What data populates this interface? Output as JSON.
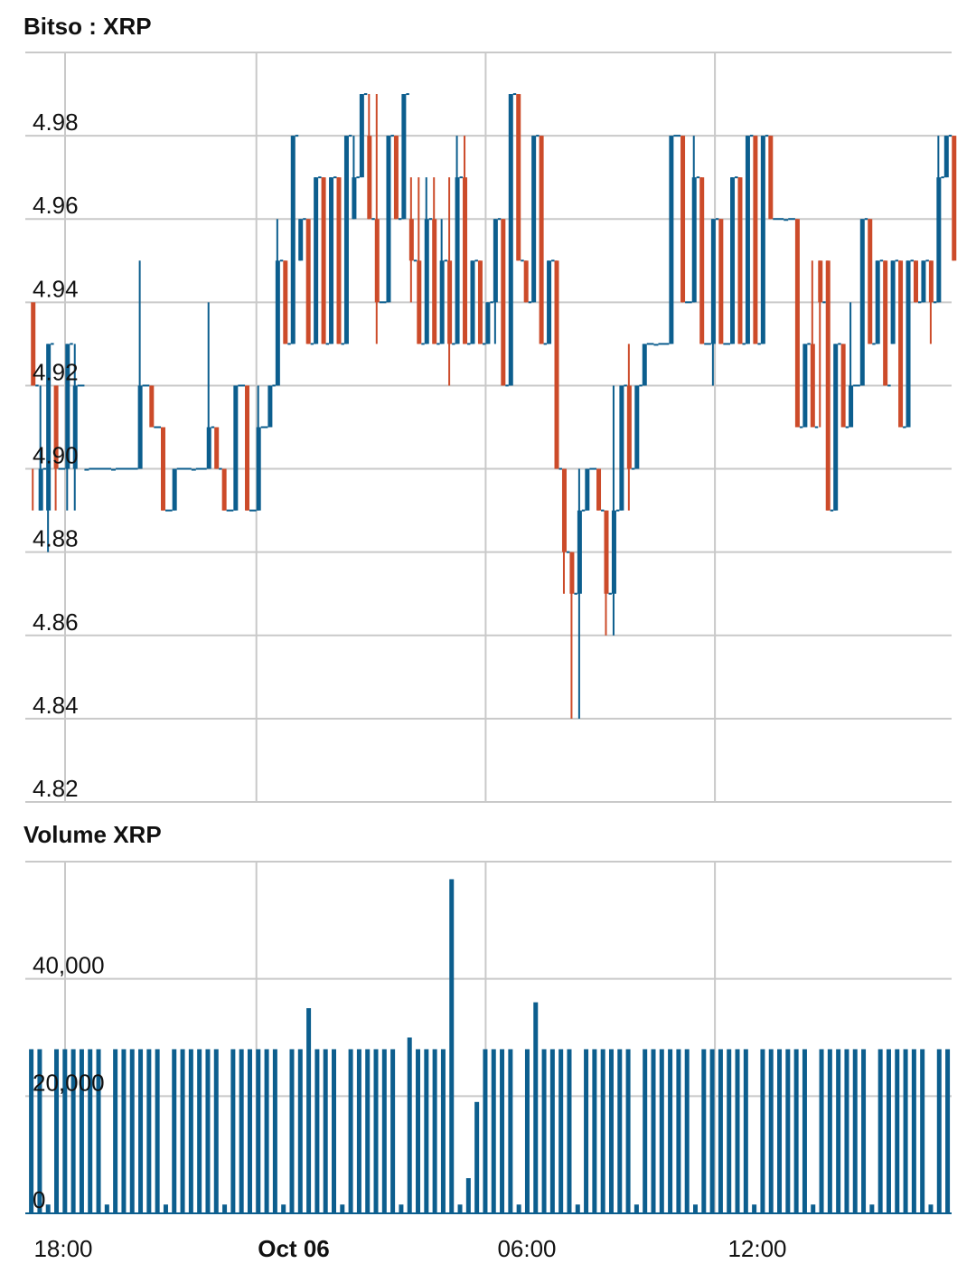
{
  "chart_data": [
    {
      "type": "line",
      "title": "Bitso : XRP",
      "style": "step-candles",
      "colors": {
        "up": "#0c5e8e",
        "down": "#cc4b2a"
      },
      "ylim": [
        4.82,
        5.0
      ],
      "yticks": [
        4.82,
        4.84,
        4.86,
        4.88,
        4.9,
        4.92,
        4.94,
        4.96,
        4.98
      ],
      "ytick_labels": [
        "4.82",
        "4.84",
        "4.86",
        "4.88",
        "4.90",
        "4.92",
        "4.94",
        "4.96",
        "4.98"
      ],
      "xlim": [
        0.0,
        24.17
      ],
      "xticks": [
        0,
        6,
        12,
        18
      ],
      "xtick_labels": [
        "18:00",
        "Oct 06",
        "06:00",
        "12:00"
      ],
      "grid": true,
      "candles": [
        [
          0.1,
          4.94,
          4.92,
          4.9,
          4.89
        ],
        [
          0.3,
          4.89,
          4.9,
          4.92,
          4.89
        ],
        [
          0.5,
          4.89,
          4.93,
          4.93,
          4.88
        ],
        [
          0.7,
          4.92,
          4.9,
          4.92,
          4.89
        ],
        [
          1.0,
          4.9,
          4.93,
          4.93,
          4.89
        ],
        [
          1.2,
          4.9,
          4.92,
          4.93,
          4.89
        ],
        [
          1.5,
          4.9,
          4.9,
          4.9,
          4.9
        ],
        [
          2.2,
          4.9,
          4.9,
          4.9,
          4.9
        ],
        [
          2.9,
          4.9,
          4.92,
          4.95,
          4.9
        ],
        [
          3.2,
          4.92,
          4.91,
          4.92,
          4.91
        ],
        [
          3.5,
          4.91,
          4.89,
          4.91,
          4.89
        ],
        [
          3.8,
          4.89,
          4.9,
          4.9,
          4.89
        ],
        [
          4.3,
          4.9,
          4.9,
          4.9,
          4.9
        ],
        [
          4.7,
          4.9,
          4.91,
          4.94,
          4.9
        ],
        [
          4.9,
          4.91,
          4.9,
          4.91,
          4.9
        ],
        [
          5.1,
          4.9,
          4.89,
          4.9,
          4.89
        ],
        [
          5.4,
          4.89,
          4.92,
          4.92,
          4.89
        ],
        [
          5.7,
          4.92,
          4.89,
          4.92,
          4.89
        ],
        [
          6.0,
          4.89,
          4.91,
          4.92,
          4.89
        ],
        [
          6.3,
          4.91,
          4.92,
          4.92,
          4.91
        ],
        [
          6.5,
          4.92,
          4.95,
          4.96,
          4.92
        ],
        [
          6.7,
          4.95,
          4.93,
          4.95,
          4.93
        ],
        [
          6.9,
          4.93,
          4.98,
          4.98,
          4.93
        ],
        [
          7.1,
          4.95,
          4.96,
          4.96,
          4.95
        ],
        [
          7.3,
          4.96,
          4.93,
          4.96,
          4.93
        ],
        [
          7.5,
          4.93,
          4.97,
          4.97,
          4.93
        ],
        [
          7.7,
          4.97,
          4.93,
          4.97,
          4.93
        ],
        [
          7.9,
          4.93,
          4.97,
          4.97,
          4.93
        ],
        [
          8.1,
          4.97,
          4.93,
          4.97,
          4.93
        ],
        [
          8.3,
          4.93,
          4.98,
          4.98,
          4.93
        ],
        [
          8.5,
          4.96,
          4.97,
          4.98,
          4.96
        ],
        [
          8.7,
          4.97,
          4.99,
          4.99,
          4.97
        ],
        [
          8.9,
          4.98,
          4.96,
          4.99,
          4.96
        ],
        [
          9.1,
          4.96,
          4.94,
          4.99,
          4.93
        ],
        [
          9.4,
          4.94,
          4.98,
          4.98,
          4.94
        ],
        [
          9.6,
          4.98,
          4.96,
          4.98,
          4.96
        ],
        [
          9.8,
          4.96,
          4.99,
          4.99,
          4.96
        ],
        [
          10.0,
          4.96,
          4.95,
          4.97,
          4.94
        ],
        [
          10.2,
          4.95,
          4.93,
          4.97,
          4.93
        ],
        [
          10.4,
          4.93,
          4.96,
          4.97,
          4.93
        ],
        [
          10.6,
          4.96,
          4.93,
          4.97,
          4.93
        ],
        [
          10.8,
          4.93,
          4.95,
          4.96,
          4.93
        ],
        [
          11.0,
          4.95,
          4.93,
          4.97,
          4.92
        ],
        [
          11.2,
          4.93,
          4.97,
          4.98,
          4.93
        ],
        [
          11.4,
          4.97,
          4.93,
          4.98,
          4.93
        ],
        [
          11.6,
          4.93,
          4.95,
          4.95,
          4.93
        ],
        [
          11.8,
          4.95,
          4.93,
          4.95,
          4.93
        ],
        [
          12.0,
          4.93,
          4.94,
          4.94,
          4.93
        ],
        [
          12.2,
          4.94,
          4.96,
          4.96,
          4.93
        ],
        [
          12.4,
          4.96,
          4.92,
          4.96,
          4.92
        ],
        [
          12.6,
          4.92,
          4.99,
          4.99,
          4.92
        ],
        [
          12.8,
          4.99,
          4.95,
          4.99,
          4.95
        ],
        [
          13.0,
          4.95,
          4.94,
          4.95,
          4.94
        ],
        [
          13.2,
          4.94,
          4.98,
          4.98,
          4.94
        ],
        [
          13.4,
          4.98,
          4.93,
          4.98,
          4.93
        ],
        [
          13.6,
          4.93,
          4.95,
          4.95,
          4.93
        ],
        [
          13.8,
          4.95,
          4.9,
          4.95,
          4.9
        ],
        [
          14.0,
          4.9,
          4.88,
          4.9,
          4.87
        ],
        [
          14.2,
          4.88,
          4.87,
          4.88,
          4.84
        ],
        [
          14.4,
          4.87,
          4.89,
          4.9,
          4.84
        ],
        [
          14.6,
          4.89,
          4.9,
          4.9,
          4.89
        ],
        [
          14.9,
          4.9,
          4.89,
          4.9,
          4.89
        ],
        [
          15.1,
          4.89,
          4.87,
          4.89,
          4.86
        ],
        [
          15.3,
          4.87,
          4.89,
          4.92,
          4.86
        ],
        [
          15.5,
          4.89,
          4.92,
          4.92,
          4.89
        ],
        [
          15.7,
          4.92,
          4.9,
          4.93,
          4.89
        ],
        [
          15.9,
          4.9,
          4.92,
          4.92,
          4.9
        ],
        [
          16.1,
          4.92,
          4.93,
          4.93,
          4.92
        ],
        [
          16.4,
          4.93,
          4.93,
          4.93,
          4.93
        ],
        [
          16.8,
          4.93,
          4.98,
          4.98,
          4.93
        ],
        [
          17.1,
          4.98,
          4.94,
          4.98,
          4.94
        ],
        [
          17.4,
          4.94,
          4.97,
          4.98,
          4.94
        ],
        [
          17.6,
          4.97,
          4.93,
          4.97,
          4.93
        ],
        [
          17.9,
          4.93,
          4.96,
          4.96,
          4.92
        ],
        [
          18.1,
          4.96,
          4.93,
          4.96,
          4.93
        ],
        [
          18.4,
          4.93,
          4.97,
          4.97,
          4.93
        ],
        [
          18.6,
          4.97,
          4.93,
          4.97,
          4.93
        ],
        [
          18.8,
          4.93,
          4.98,
          4.98,
          4.93
        ],
        [
          19.0,
          4.98,
          4.93,
          4.98,
          4.93
        ],
        [
          19.2,
          4.93,
          4.98,
          4.98,
          4.93
        ],
        [
          19.4,
          4.98,
          4.96,
          4.98,
          4.96
        ],
        [
          19.8,
          4.96,
          4.96,
          4.96,
          4.96
        ],
        [
          20.1,
          4.96,
          4.91,
          4.96,
          4.91
        ],
        [
          20.3,
          4.91,
          4.93,
          4.93,
          4.91
        ],
        [
          20.5,
          4.93,
          4.91,
          4.95,
          4.91
        ],
        [
          20.7,
          4.95,
          4.94,
          4.95,
          4.91
        ],
        [
          20.9,
          4.95,
          4.89,
          4.95,
          4.89
        ],
        [
          21.1,
          4.89,
          4.93,
          4.93,
          4.89
        ],
        [
          21.3,
          4.93,
          4.91,
          4.93,
          4.91
        ],
        [
          21.5,
          4.91,
          4.92,
          4.94,
          4.91
        ],
        [
          21.8,
          4.92,
          4.96,
          4.96,
          4.92
        ],
        [
          22.0,
          4.96,
          4.93,
          4.96,
          4.93
        ],
        [
          22.2,
          4.93,
          4.95,
          4.95,
          4.93
        ],
        [
          22.4,
          4.95,
          4.92,
          4.95,
          4.92
        ],
        [
          22.6,
          4.93,
          4.95,
          4.95,
          4.93
        ],
        [
          22.8,
          4.95,
          4.91,
          4.95,
          4.91
        ],
        [
          23.0,
          4.91,
          4.95,
          4.95,
          4.91
        ],
        [
          23.2,
          4.95,
          4.94,
          4.95,
          4.94
        ],
        [
          23.4,
          4.94,
          4.95,
          4.95,
          4.94
        ],
        [
          23.6,
          4.95,
          4.94,
          4.95,
          4.93
        ],
        [
          23.8,
          4.94,
          4.97,
          4.98,
          4.94
        ],
        [
          24.0,
          4.97,
          4.98,
          4.98,
          4.97
        ],
        [
          24.2,
          4.98,
          4.95,
          4.98,
          4.95
        ]
      ]
    },
    {
      "type": "bar",
      "title": "Volume XRP",
      "color": "#0c5e8e",
      "ylim": [
        0,
        60000
      ],
      "yticks": [
        0,
        20000,
        40000
      ],
      "ytick_labels": [
        "0",
        "20,000",
        "40,000"
      ],
      "xtick_labels": [
        "18:00",
        "Oct 06",
        "06:00",
        "12:00"
      ],
      "grid": true,
      "bars": []
    }
  ]
}
